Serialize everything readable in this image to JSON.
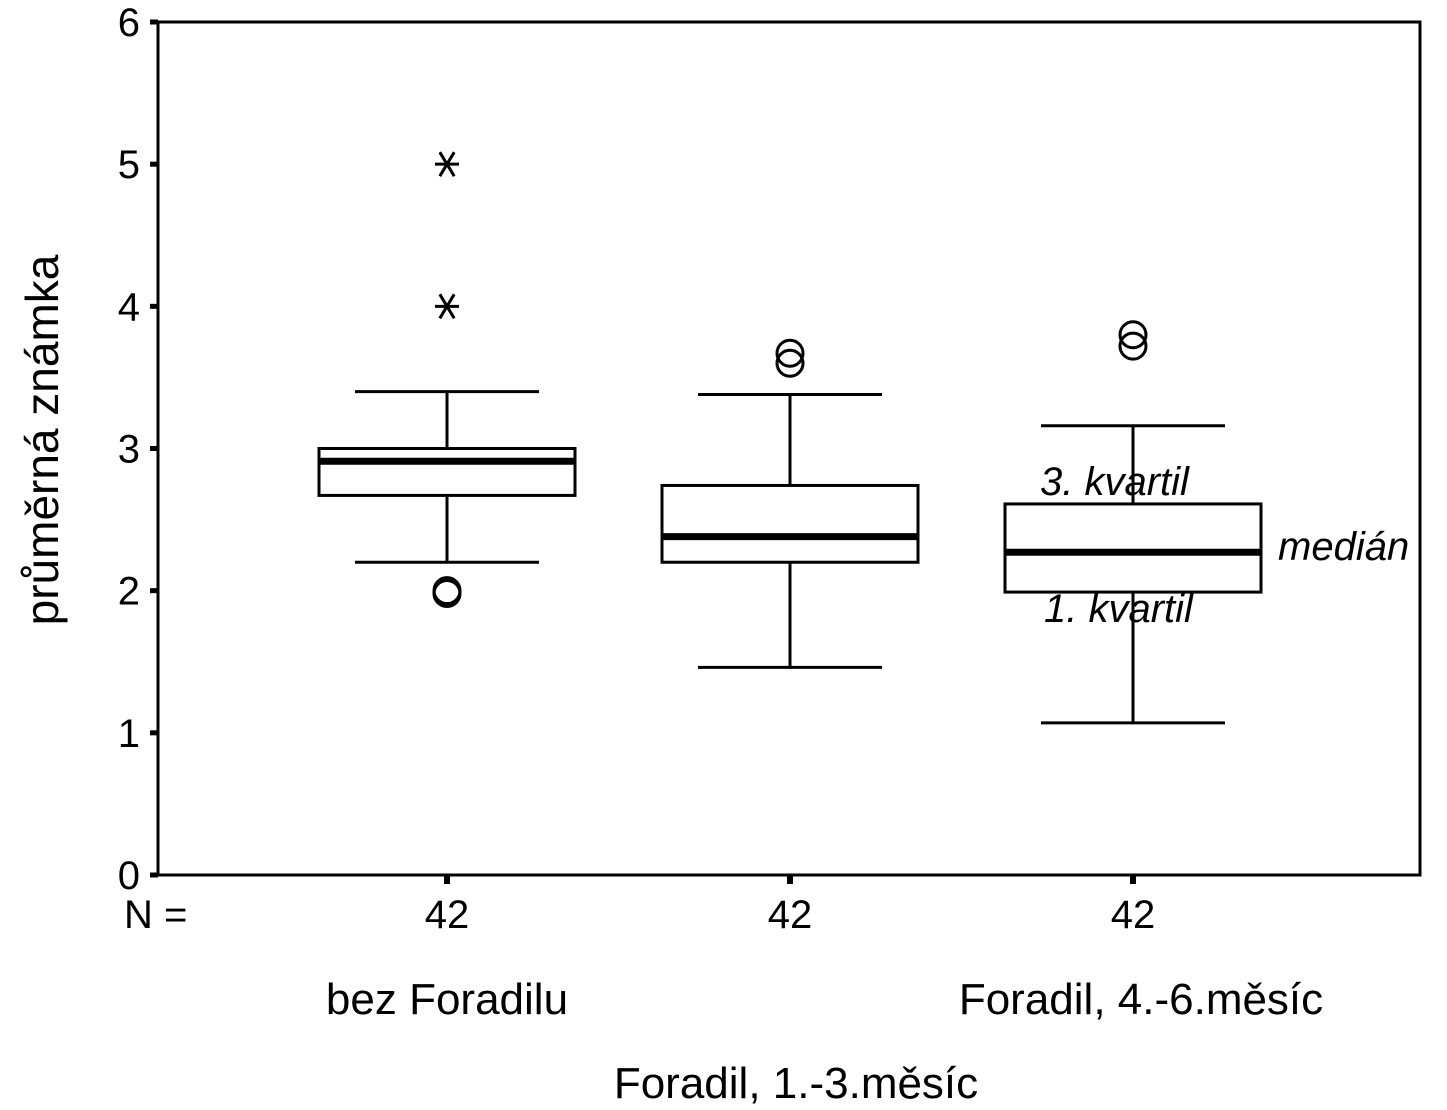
{
  "chart_data": {
    "type": "box",
    "ylabel": "průměrná známka",
    "ylim": [
      0,
      6
    ],
    "yticks": [
      "0",
      "1",
      "2",
      "3",
      "4",
      "5",
      "6"
    ],
    "n_label": "N =",
    "categories": [
      "bez Foradilu",
      "Foradil, 1.-3.měsíc",
      "Foradil, 4.-6.měsíc"
    ],
    "boxes": [
      {
        "category": "bez Foradilu",
        "n": "42",
        "whisker_low": 2.2,
        "q1": 2.67,
        "median": 2.91,
        "q3": 3.0,
        "whisker_high": 3.4,
        "outliers": [
          1.98,
          2.0
        ],
        "extremes": [
          4.0,
          5.0
        ]
      },
      {
        "category": "Foradil, 1.-3.měsíc",
        "n": "42",
        "whisker_low": 1.46,
        "q1": 2.2,
        "median": 2.38,
        "q3": 2.74,
        "whisker_high": 3.38,
        "outliers": [
          3.6,
          3.67
        ],
        "extremes": []
      },
      {
        "category": "Foradil, 4.-6.měsíc",
        "n": "42",
        "whisker_low": 1.07,
        "q1": 1.99,
        "median": 2.27,
        "q3": 2.61,
        "whisker_high": 3.16,
        "outliers": [
          3.72,
          3.8
        ],
        "extremes": []
      }
    ],
    "annotations": {
      "q3": "3. kvartil",
      "median": "medián",
      "q1": "1. kvartil"
    }
  }
}
